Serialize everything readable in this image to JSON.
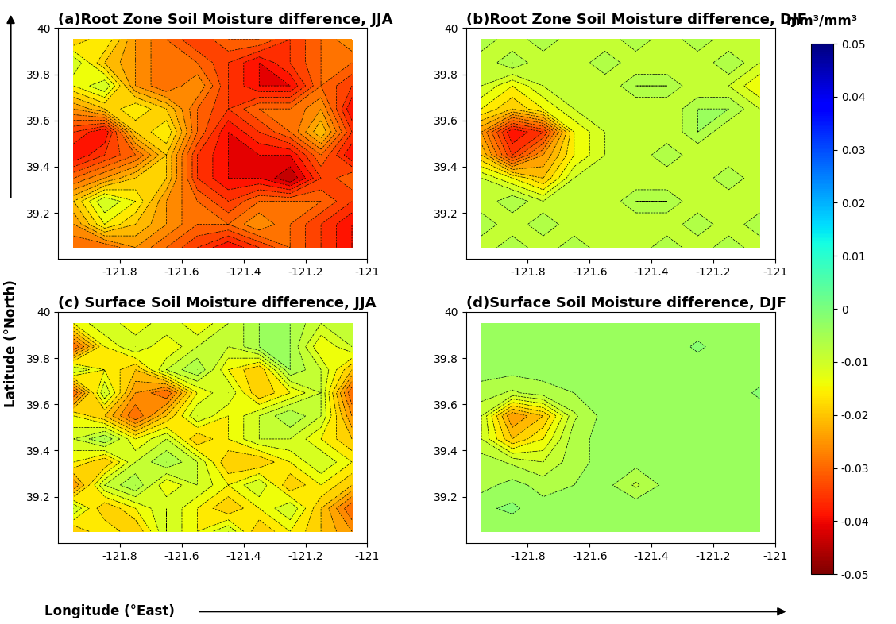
{
  "figure": {
    "xlabel": "Longitude (°East)",
    "ylabel": "Latitude (°North)",
    "colorbar": {
      "label": "mm³/mm³",
      "range": [
        -0.05,
        0.05
      ],
      "ticks": [
        -0.05,
        -0.04,
        -0.03,
        -0.02,
        -0.01,
        0,
        0.01,
        0.02,
        0.03,
        0.04,
        0.05
      ]
    }
  },
  "chart_data": [
    {
      "type": "contour",
      "title": "(a)Root Zone Soil Moisture difference, JJA",
      "xlim": [
        -122,
        -121
      ],
      "ylim": [
        39,
        40
      ],
      "xticks": [
        -121.8,
        -121.6,
        -121.4,
        -121.2,
        -121
      ],
      "yticks": [
        39.2,
        39.4,
        39.6,
        39.8,
        40
      ],
      "x": [
        -121.95,
        -121.85,
        -121.75,
        -121.65,
        -121.55,
        -121.45,
        -121.35,
        -121.25,
        -121.15,
        -121.05
      ],
      "y": [
        39.05,
        39.15,
        39.25,
        39.35,
        39.45,
        39.55,
        39.65,
        39.75,
        39.85,
        39.95
      ],
      "values": [
        [
          -0.03,
          -0.03,
          -0.025,
          -0.03,
          -0.035,
          -0.04,
          -0.035,
          -0.03,
          -0.035,
          -0.04
        ],
        [
          -0.025,
          -0.015,
          -0.02,
          -0.025,
          -0.03,
          -0.03,
          -0.025,
          -0.03,
          -0.035,
          -0.04
        ],
        [
          -0.02,
          -0.01,
          -0.015,
          -0.025,
          -0.03,
          -0.035,
          -0.03,
          -0.03,
          -0.03,
          -0.035
        ],
        [
          -0.03,
          -0.025,
          -0.02,
          -0.02,
          -0.035,
          -0.04,
          -0.04,
          -0.045,
          -0.035,
          -0.03
        ],
        [
          -0.04,
          -0.035,
          -0.03,
          -0.02,
          -0.035,
          -0.04,
          -0.04,
          -0.04,
          -0.03,
          -0.04
        ],
        [
          -0.035,
          -0.04,
          -0.02,
          -0.015,
          -0.03,
          -0.04,
          -0.035,
          -0.03,
          -0.02,
          -0.035
        ],
        [
          -0.025,
          -0.02,
          -0.015,
          -0.02,
          -0.03,
          -0.035,
          -0.03,
          -0.03,
          -0.025,
          -0.04
        ],
        [
          -0.015,
          -0.01,
          -0.025,
          -0.03,
          -0.025,
          -0.035,
          -0.04,
          -0.04,
          -0.03,
          -0.035
        ],
        [
          -0.01,
          -0.02,
          -0.025,
          -0.03,
          -0.03,
          -0.035,
          -0.04,
          -0.035,
          -0.03,
          -0.03
        ],
        [
          -0.02,
          -0.015,
          -0.025,
          -0.03,
          -0.035,
          -0.03,
          -0.03,
          -0.035,
          -0.03,
          -0.025
        ]
      ]
    },
    {
      "type": "contour",
      "title": "(b)Root Zone Soil Moisture difference, DJF",
      "xlim": [
        -122,
        -121
      ],
      "ylim": [
        39,
        40
      ],
      "xticks": [
        -121.8,
        -121.6,
        -121.4,
        -121.2,
        -121
      ],
      "yticks": [
        39.2,
        39.4,
        39.6,
        39.8,
        40
      ],
      "x": [
        -121.95,
        -121.85,
        -121.75,
        -121.65,
        -121.55,
        -121.45,
        -121.35,
        -121.25,
        -121.15,
        -121.05
      ],
      "y": [
        39.05,
        39.15,
        39.25,
        39.35,
        39.45,
        39.55,
        39.65,
        39.75,
        39.85,
        39.95
      ],
      "values": [
        [
          -0.01,
          -0.005,
          -0.01,
          -0.005,
          -0.01,
          -0.01,
          -0.005,
          -0.01,
          -0.005,
          -0.01
        ],
        [
          -0.005,
          -0.01,
          -0.005,
          -0.01,
          -0.01,
          -0.01,
          -0.01,
          -0.005,
          -0.01,
          -0.005
        ],
        [
          -0.01,
          -0.005,
          -0.01,
          -0.01,
          -0.01,
          -0.005,
          -0.005,
          -0.01,
          -0.01,
          -0.01
        ],
        [
          -0.01,
          -0.015,
          -0.02,
          -0.01,
          -0.01,
          -0.01,
          -0.01,
          -0.01,
          -0.005,
          -0.01
        ],
        [
          -0.02,
          -0.035,
          -0.025,
          -0.015,
          -0.01,
          -0.01,
          -0.005,
          -0.01,
          -0.01,
          -0.01
        ],
        [
          -0.025,
          -0.04,
          -0.035,
          -0.015,
          -0.01,
          -0.01,
          -0.01,
          -0.005,
          -0.01,
          -0.01
        ],
        [
          -0.015,
          -0.02,
          -0.015,
          -0.01,
          -0.01,
          -0.01,
          -0.01,
          -0.005,
          -0.005,
          -0.01
        ],
        [
          -0.01,
          -0.015,
          -0.01,
          -0.01,
          -0.01,
          -0.005,
          -0.005,
          -0.01,
          -0.01,
          -0.015
        ],
        [
          -0.01,
          -0.005,
          -0.01,
          -0.01,
          -0.005,
          -0.01,
          -0.01,
          -0.01,
          -0.005,
          -0.01
        ],
        [
          -0.005,
          -0.01,
          -0.005,
          -0.01,
          -0.01,
          -0.005,
          -0.01,
          -0.005,
          -0.01,
          -0.01
        ]
      ]
    },
    {
      "type": "contour",
      "title": "(c) Surface Soil Moisture difference, JJA",
      "xlim": [
        -122,
        -121
      ],
      "ylim": [
        39,
        40
      ],
      "xticks": [
        -121.8,
        -121.6,
        -121.4,
        -121.2,
        -121
      ],
      "yticks": [
        39.2,
        39.4,
        39.6,
        39.8,
        40
      ],
      "x": [
        -121.95,
        -121.85,
        -121.75,
        -121.65,
        -121.55,
        -121.45,
        -121.35,
        -121.25,
        -121.15,
        -121.05
      ],
      "y": [
        39.05,
        39.15,
        39.25,
        39.35,
        39.45,
        39.55,
        39.65,
        39.75,
        39.85,
        39.95
      ],
      "values": [
        [
          -0.02,
          -0.015,
          -0.02,
          -0.01,
          -0.015,
          -0.01,
          -0.02,
          -0.015,
          -0.02,
          -0.025
        ],
        [
          -0.01,
          -0.02,
          -0.015,
          -0.01,
          -0.015,
          -0.02,
          -0.015,
          -0.01,
          -0.02,
          -0.03
        ],
        [
          -0.025,
          -0.01,
          -0.005,
          -0.015,
          -0.01,
          -0.015,
          -0.01,
          -0.02,
          -0.015,
          -0.02
        ],
        [
          -0.015,
          -0.02,
          -0.01,
          -0.005,
          -0.01,
          -0.02,
          -0.02,
          -0.015,
          -0.01,
          -0.015
        ],
        [
          -0.01,
          -0.005,
          -0.015,
          -0.01,
          -0.02,
          -0.015,
          -0.01,
          -0.01,
          -0.015,
          -0.02
        ],
        [
          -0.015,
          -0.02,
          -0.03,
          -0.02,
          -0.01,
          -0.015,
          -0.01,
          -0.005,
          -0.01,
          -0.025
        ],
        [
          -0.03,
          -0.01,
          -0.025,
          -0.03,
          -0.015,
          -0.01,
          -0.02,
          -0.015,
          -0.01,
          -0.03
        ],
        [
          -0.01,
          -0.015,
          -0.02,
          -0.01,
          -0.005,
          -0.015,
          -0.02,
          -0.005,
          -0.01,
          -0.02
        ],
        [
          -0.03,
          -0.015,
          -0.01,
          -0.015,
          -0.01,
          -0.01,
          -0.005,
          -0.005,
          -0.015,
          -0.01
        ],
        [
          -0.015,
          -0.01,
          -0.015,
          -0.01,
          -0.015,
          -0.01,
          -0.005,
          -0.005,
          -0.01,
          -0.01
        ]
      ]
    },
    {
      "type": "contour",
      "title": "(d)Surface Soil Moisture difference, DJF",
      "xlim": [
        -122,
        -121
      ],
      "ylim": [
        39,
        40
      ],
      "xticks": [
        -121.8,
        -121.6,
        -121.4,
        -121.2,
        -121
      ],
      "yticks": [
        39.2,
        39.4,
        39.6,
        39.8,
        40
      ],
      "x": [
        -121.95,
        -121.85,
        -121.75,
        -121.65,
        -121.55,
        -121.45,
        -121.35,
        -121.25,
        -121.15,
        -121.05
      ],
      "y": [
        39.05,
        39.15,
        39.25,
        39.35,
        39.45,
        39.55,
        39.65,
        39.75,
        39.85,
        39.95
      ],
      "values": [
        [
          -0.004,
          -0.004,
          -0.005,
          -0.004,
          -0.003,
          -0.004,
          -0.004,
          -0.003,
          -0.004,
          -0.004
        ],
        [
          -0.003,
          -0.002,
          -0.004,
          -0.004,
          -0.004,
          -0.003,
          -0.004,
          -0.004,
          -0.003,
          -0.004
        ],
        [
          -0.006,
          -0.004,
          -0.006,
          -0.005,
          -0.004,
          -0.008,
          -0.004,
          -0.004,
          -0.004,
          -0.003
        ],
        [
          -0.006,
          -0.008,
          -0.01,
          -0.006,
          -0.004,
          -0.004,
          -0.004,
          -0.003,
          -0.004,
          -0.004
        ],
        [
          -0.01,
          -0.02,
          -0.015,
          -0.006,
          -0.004,
          -0.004,
          -0.003,
          -0.004,
          -0.004,
          -0.004
        ],
        [
          -0.01,
          -0.025,
          -0.02,
          -0.008,
          -0.004,
          -0.004,
          -0.004,
          -0.004,
          -0.003,
          -0.004
        ],
        [
          -0.006,
          -0.008,
          -0.006,
          -0.005,
          -0.004,
          -0.003,
          -0.004,
          -0.004,
          -0.004,
          -0.002
        ],
        [
          -0.004,
          -0.004,
          -0.004,
          -0.004,
          -0.004,
          -0.004,
          -0.003,
          -0.004,
          -0.004,
          -0.004
        ],
        [
          -0.004,
          -0.004,
          -0.003,
          -0.004,
          -0.004,
          -0.004,
          -0.004,
          -0.002,
          -0.004,
          -0.003
        ],
        [
          -0.004,
          -0.003,
          -0.004,
          -0.004,
          -0.004,
          -0.004,
          -0.004,
          -0.004,
          -0.003,
          -0.004
        ]
      ]
    }
  ]
}
